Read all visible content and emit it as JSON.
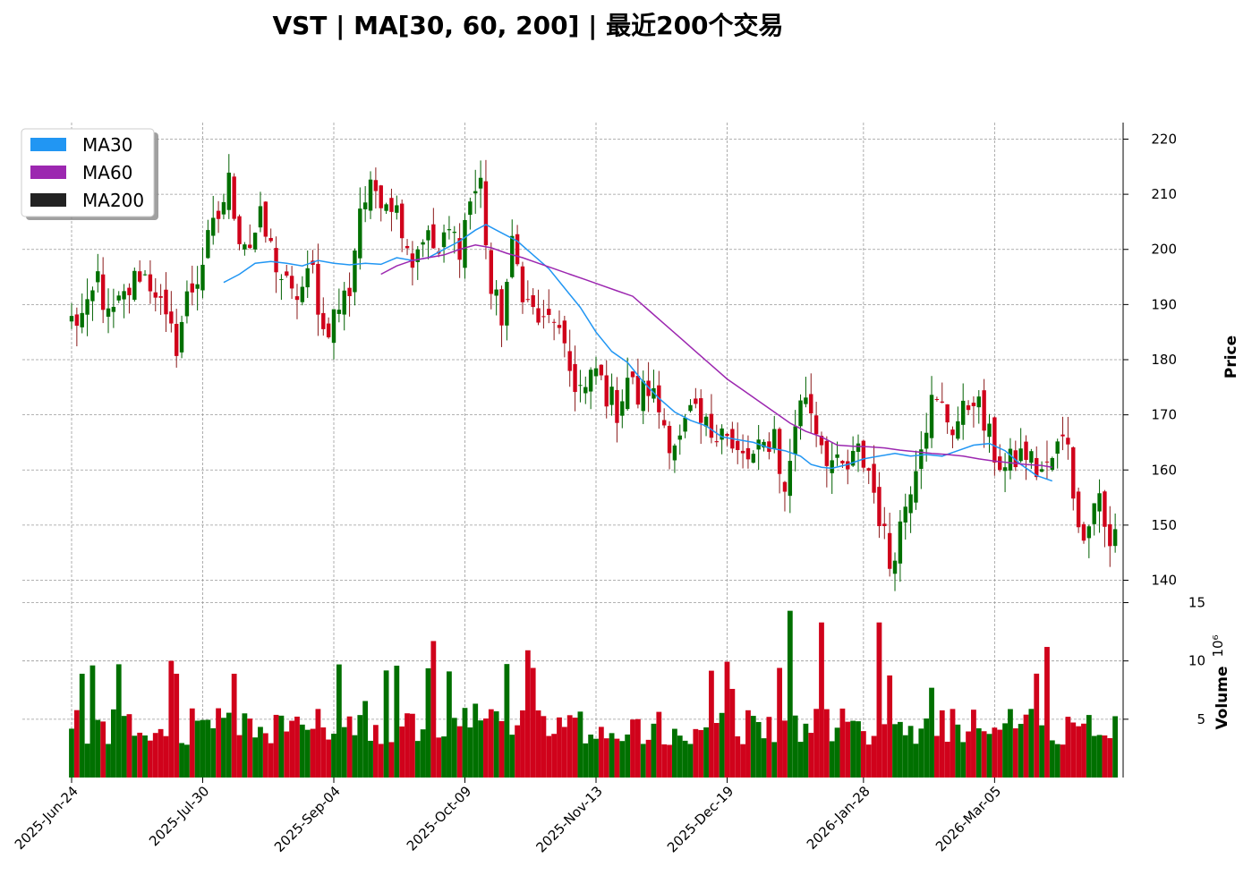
{
  "chart_data": {
    "type": "candlestick",
    "title": "VST  |  MA[30, 60, 200]  |  最近200个交易",
    "x_tick_labels": [
      "2025-Jun-24",
      "2025-Jul-30",
      "2025-Sep-04",
      "2025-Oct-09",
      "2025-Nov-13",
      "2025-Dec-19",
      "2026-Jan-28",
      "2026-Mar-05"
    ],
    "x_tick_indices": [
      0,
      25,
      50,
      75,
      100,
      125,
      151,
      176
    ],
    "price_axis": {
      "label": "Price",
      "ticks": [
        140,
        150,
        160,
        170,
        180,
        190,
        200,
        210,
        220
      ],
      "range": [
        137,
        223
      ]
    },
    "volume_axis": {
      "label": "Volume",
      "exponent_label": "10⁶",
      "ticks": [
        5,
        10,
        15
      ],
      "range": [
        0,
        15.5
      ]
    },
    "legend": {
      "position": "top-left",
      "entries": [
        {
          "name": "MA30",
          "color": "#2196f3"
        },
        {
          "name": "MA60",
          "color": "#9c27b0"
        },
        {
          "name": "MA200",
          "color": "#222222"
        }
      ]
    },
    "colors": {
      "up": "#007000",
      "down": "#d0021b",
      "up_wick": "#006000",
      "down_wick": "#8b1a1a"
    },
    "grid": true,
    "anchors": [
      [
        0,
        187
      ],
      [
        3,
        188
      ],
      [
        5,
        195
      ],
      [
        7,
        187
      ],
      [
        10,
        191
      ],
      [
        13,
        196
      ],
      [
        16,
        193
      ],
      [
        18,
        186
      ],
      [
        20,
        183
      ],
      [
        22,
        191
      ],
      [
        24,
        195
      ],
      [
        26,
        201
      ],
      [
        28,
        206
      ],
      [
        30,
        212
      ],
      [
        32,
        203
      ],
      [
        34,
        201
      ],
      [
        36,
        205
      ],
      [
        38,
        200
      ],
      [
        40,
        195
      ],
      [
        42,
        191
      ],
      [
        44,
        193
      ],
      [
        46,
        196
      ],
      [
        48,
        185
      ],
      [
        50,
        188
      ],
      [
        53,
        193
      ],
      [
        55,
        208
      ],
      [
        58,
        211
      ],
      [
        61,
        209
      ],
      [
        63,
        205
      ],
      [
        65,
        198
      ],
      [
        67,
        203
      ],
      [
        70,
        199
      ],
      [
        72,
        203
      ],
      [
        74,
        201
      ],
      [
        76,
        209
      ],
      [
        78,
        212
      ],
      [
        80,
        192
      ],
      [
        82,
        188
      ],
      [
        84,
        200
      ],
      [
        87,
        190
      ],
      [
        90,
        186
      ],
      [
        92,
        188
      ],
      [
        94,
        180
      ],
      [
        96,
        176
      ],
      [
        98,
        174
      ],
      [
        100,
        178
      ],
      [
        102,
        174
      ],
      [
        104,
        171
      ],
      [
        106,
        177
      ],
      [
        108,
        173
      ],
      [
        110,
        175
      ],
      [
        112,
        171
      ],
      [
        114,
        166
      ],
      [
        116,
        165
      ],
      [
        118,
        170
      ],
      [
        120,
        168
      ],
      [
        122,
        167
      ],
      [
        124,
        169
      ],
      [
        126,
        163
      ],
      [
        128,
        162
      ],
      [
        130,
        162
      ],
      [
        132,
        164
      ],
      [
        134,
        167
      ],
      [
        136,
        155
      ],
      [
        138,
        169
      ],
      [
        140,
        174
      ],
      [
        142,
        168
      ],
      [
        144,
        163
      ],
      [
        146,
        160
      ],
      [
        148,
        160
      ],
      [
        150,
        163
      ],
      [
        152,
        160
      ],
      [
        154,
        152
      ],
      [
        156,
        143
      ],
      [
        158,
        150
      ],
      [
        160,
        158
      ],
      [
        162,
        166
      ],
      [
        164,
        172
      ],
      [
        166,
        171
      ],
      [
        168,
        168
      ],
      [
        170,
        170
      ],
      [
        172,
        174
      ],
      [
        174,
        168
      ],
      [
        176,
        163
      ],
      [
        178,
        160
      ],
      [
        180,
        162
      ],
      [
        182,
        163
      ],
      [
        184,
        160
      ],
      [
        186,
        160
      ],
      [
        188,
        164
      ],
      [
        190,
        166
      ],
      [
        192,
        148
      ],
      [
        194,
        152
      ],
      [
        196,
        156
      ],
      [
        198,
        145
      ],
      [
        200,
        152
      ],
      [
        202,
        151
      ],
      [
        204,
        156
      ],
      [
        206,
        153
      ]
    ],
    "ma30": [
      [
        29,
        194
      ],
      [
        32,
        195.5
      ],
      [
        35,
        197.5
      ],
      [
        38,
        197.8
      ],
      [
        41,
        197.5
      ],
      [
        44,
        197
      ],
      [
        47,
        198
      ],
      [
        50,
        197.5
      ],
      [
        53,
        197.2
      ],
      [
        56,
        197.5
      ],
      [
        59,
        197.3
      ],
      [
        62,
        198.5
      ],
      [
        65,
        198
      ],
      [
        68,
        198.5
      ],
      [
        71,
        200
      ],
      [
        74,
        201.5
      ],
      [
        77,
        203.5
      ],
      [
        79,
        204.5
      ],
      [
        82,
        203
      ],
      [
        85,
        201.5
      ],
      [
        88,
        199
      ],
      [
        91,
        196.5
      ],
      [
        94,
        193
      ],
      [
        97,
        189.5
      ],
      [
        100,
        185
      ],
      [
        103,
        181.5
      ],
      [
        106,
        179.5
      ],
      [
        109,
        176
      ],
      [
        112,
        173
      ],
      [
        115,
        170.5
      ],
      [
        118,
        169
      ],
      [
        121,
        168
      ],
      [
        124,
        166
      ],
      [
        127,
        165.5
      ],
      [
        130,
        165
      ],
      [
        133,
        164
      ],
      [
        136,
        163.5
      ],
      [
        139,
        162.5
      ],
      [
        141,
        161
      ],
      [
        143,
        160.5
      ],
      [
        145,
        160.3
      ],
      [
        148,
        161
      ],
      [
        151,
        162
      ],
      [
        154,
        162.5
      ],
      [
        157,
        163
      ],
      [
        160,
        162.5
      ],
      [
        163,
        162.8
      ],
      [
        166,
        162.5
      ],
      [
        169,
        163.5
      ],
      [
        172,
        164.5
      ],
      [
        175,
        164.8
      ],
      [
        178,
        163.5
      ],
      [
        181,
        161
      ],
      [
        184,
        159
      ],
      [
        187,
        158
      ]
    ],
    "ma60": [
      [
        59,
        195.5
      ],
      [
        62,
        197
      ],
      [
        65,
        198
      ],
      [
        68,
        198.5
      ],
      [
        71,
        199
      ],
      [
        74,
        200
      ],
      [
        77,
        200.8
      ],
      [
        80,
        200.3
      ],
      [
        83,
        199.3
      ],
      [
        86,
        198.5
      ],
      [
        89,
        197.5
      ],
      [
        92,
        196.5
      ],
      [
        95,
        195.5
      ],
      [
        98,
        194.5
      ],
      [
        101,
        193.5
      ],
      [
        104,
        192.5
      ],
      [
        107,
        191.5
      ],
      [
        110,
        189
      ],
      [
        113,
        186.5
      ],
      [
        116,
        184
      ],
      [
        119,
        181.5
      ],
      [
        122,
        179
      ],
      [
        125,
        176.5
      ],
      [
        128,
        174.5
      ],
      [
        131,
        172.5
      ],
      [
        134,
        170.5
      ],
      [
        137,
        168.5
      ],
      [
        140,
        167
      ],
      [
        143,
        166
      ],
      [
        146,
        164.5
      ],
      [
        149,
        164.3
      ],
      [
        152,
        164.2
      ],
      [
        155,
        164
      ],
      [
        158,
        163.6
      ],
      [
        161,
        163.3
      ],
      [
        164,
        163
      ],
      [
        167,
        162.8
      ],
      [
        170,
        162.5
      ],
      [
        173,
        162
      ],
      [
        176,
        161.6
      ],
      [
        179,
        161.3
      ],
      [
        182,
        161
      ],
      [
        185,
        160.8
      ],
      [
        187,
        160.5
      ]
    ]
  }
}
